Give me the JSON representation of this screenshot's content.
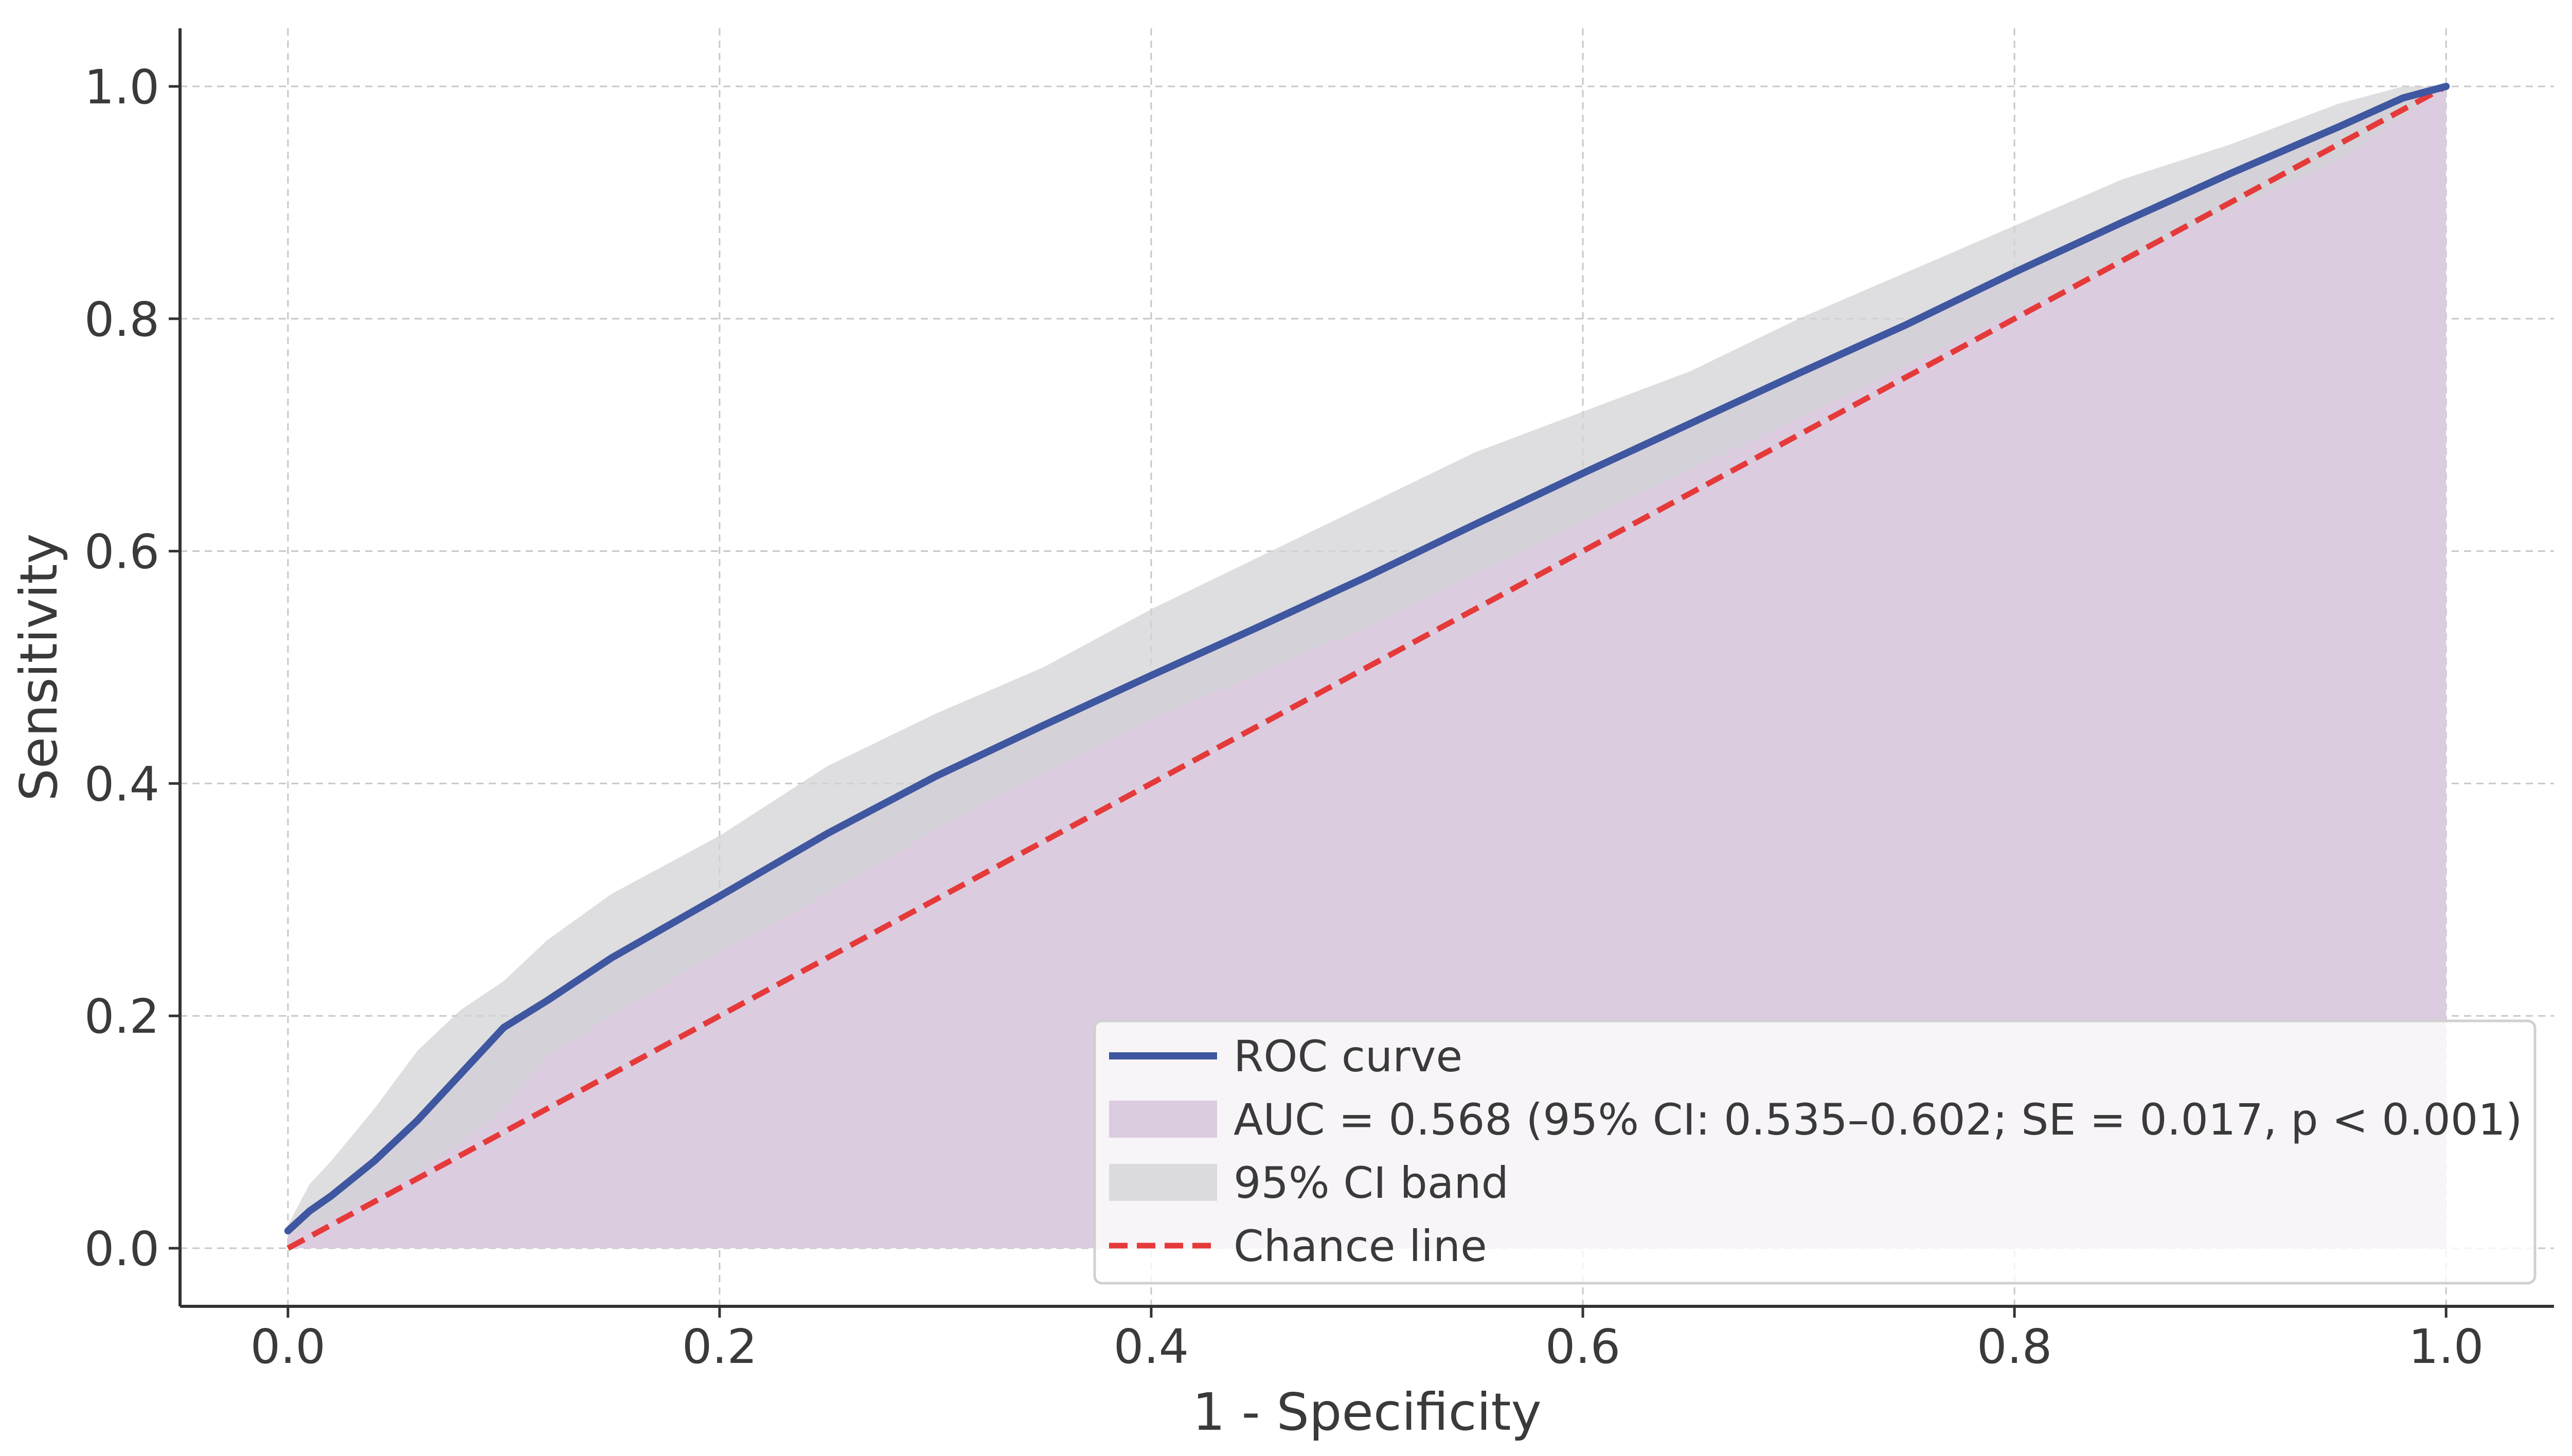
{
  "colors": {
    "roc_line": "#3f56a0",
    "auc_fill": "#dccce0",
    "ci_band": "#d3d3d6",
    "chance_line": "#e53a3a",
    "grid": "#c8c8c8",
    "axis": "#333333",
    "text": "#3a3a3a"
  },
  "chart_data": {
    "type": "line",
    "title": "",
    "xlabel": "1 - Specificity",
    "ylabel": "Sensitivity",
    "xlim": [
      -0.05,
      1.05
    ],
    "ylim": [
      -0.05,
      1.05
    ],
    "grid": true,
    "legend_position": "bottom-right",
    "x_ticks": [
      0.0,
      0.2,
      0.4,
      0.6,
      0.8,
      1.0
    ],
    "y_ticks": [
      0.0,
      0.2,
      0.4,
      0.6,
      0.8,
      1.0
    ],
    "x_tick_labels": [
      "0.0",
      "0.2",
      "0.4",
      "0.6",
      "0.8",
      "1.0"
    ],
    "y_tick_labels": [
      "0.0",
      "0.2",
      "0.4",
      "0.6",
      "0.8",
      "1.0"
    ],
    "roc_curve": {
      "name": "ROC curve",
      "x": [
        0.0,
        0.01,
        0.02,
        0.04,
        0.06,
        0.08,
        0.09,
        0.1,
        0.12,
        0.15,
        0.2,
        0.25,
        0.3,
        0.35,
        0.4,
        0.45,
        0.5,
        0.55,
        0.6,
        0.65,
        0.7,
        0.75,
        0.8,
        0.85,
        0.9,
        0.95,
        0.98,
        1.0
      ],
      "y": [
        0.015,
        0.032,
        0.045,
        0.075,
        0.11,
        0.15,
        0.17,
        0.19,
        0.213,
        0.25,
        0.303,
        0.357,
        0.406,
        0.45,
        0.493,
        0.535,
        0.578,
        0.623,
        0.667,
        0.71,
        0.753,
        0.795,
        0.84,
        0.883,
        0.925,
        0.965,
        0.99,
        1.0
      ]
    },
    "ci_band": {
      "name": "95% CI band",
      "x": [
        0.0,
        0.01,
        0.02,
        0.04,
        0.06,
        0.08,
        0.1,
        0.12,
        0.15,
        0.2,
        0.25,
        0.3,
        0.35,
        0.4,
        0.45,
        0.5,
        0.55,
        0.6,
        0.65,
        0.7,
        0.75,
        0.8,
        0.85,
        0.9,
        0.95,
        0.98,
        1.0
      ],
      "upper": [
        0.02,
        0.055,
        0.075,
        0.12,
        0.17,
        0.205,
        0.23,
        0.265,
        0.305,
        0.355,
        0.415,
        0.46,
        0.5,
        0.55,
        0.595,
        0.64,
        0.685,
        0.72,
        0.755,
        0.8,
        0.84,
        0.88,
        0.92,
        0.95,
        0.985,
        1.0,
        1.0
      ],
      "lower": [
        0.01,
        0.018,
        0.025,
        0.045,
        0.065,
        0.09,
        0.12,
        0.165,
        0.2,
        0.255,
        0.305,
        0.36,
        0.41,
        0.455,
        0.495,
        0.535,
        0.58,
        0.625,
        0.67,
        0.715,
        0.76,
        0.805,
        0.85,
        0.895,
        0.935,
        0.975,
        1.0
      ]
    },
    "chance_line": {
      "name": "Chance line",
      "x": [
        0.0,
        1.0
      ],
      "y": [
        0.0,
        1.0
      ]
    },
    "auc": {
      "label": "AUC = 0.568 (95% CI: 0.535–0.602; SE = 0.017, p < 0.001)",
      "value": 0.568,
      "ci": [
        0.535,
        0.602
      ],
      "se": 0.017
    },
    "legend": [
      {
        "label": "ROC curve",
        "kind": "line",
        "color_key": "roc_line"
      },
      {
        "label": "AUC = 0.568 (95% CI: 0.535–0.602; SE = 0.017, p < 0.001)",
        "kind": "patch",
        "color_key": "auc_fill"
      },
      {
        "label": "95% CI band",
        "kind": "patch",
        "color_key": "ci_band"
      },
      {
        "label": "Chance line",
        "kind": "dashed",
        "color_key": "chance_line"
      }
    ]
  }
}
